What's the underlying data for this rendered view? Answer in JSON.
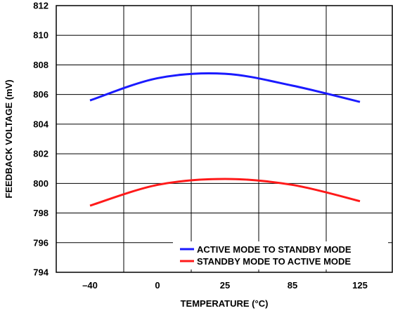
{
  "chart_data": {
    "type": "line",
    "title": "",
    "xlabel": "TEMPERATURE (°C)",
    "ylabel": "FEEDBACK VOLTAGE (mV)",
    "categories": [
      "–40",
      "0",
      "25",
      "85",
      "125"
    ],
    "ylim": [
      794,
      812
    ],
    "yticks": [
      794,
      796,
      798,
      800,
      802,
      804,
      806,
      808,
      810,
      812
    ],
    "grid": true,
    "legend_position": "bottom-right",
    "series": [
      {
        "name": "ACTIVE MODE TO STANDBY MODE",
        "color": "#1a1aff",
        "values": [
          805.6,
          807.1,
          807.4,
          806.6,
          805.5
        ]
      },
      {
        "name": "STANDBY MODE TO ACTIVE MODE",
        "color": "#ff1a1a",
        "values": [
          798.5,
          799.9,
          800.3,
          799.9,
          798.8
        ]
      }
    ]
  }
}
